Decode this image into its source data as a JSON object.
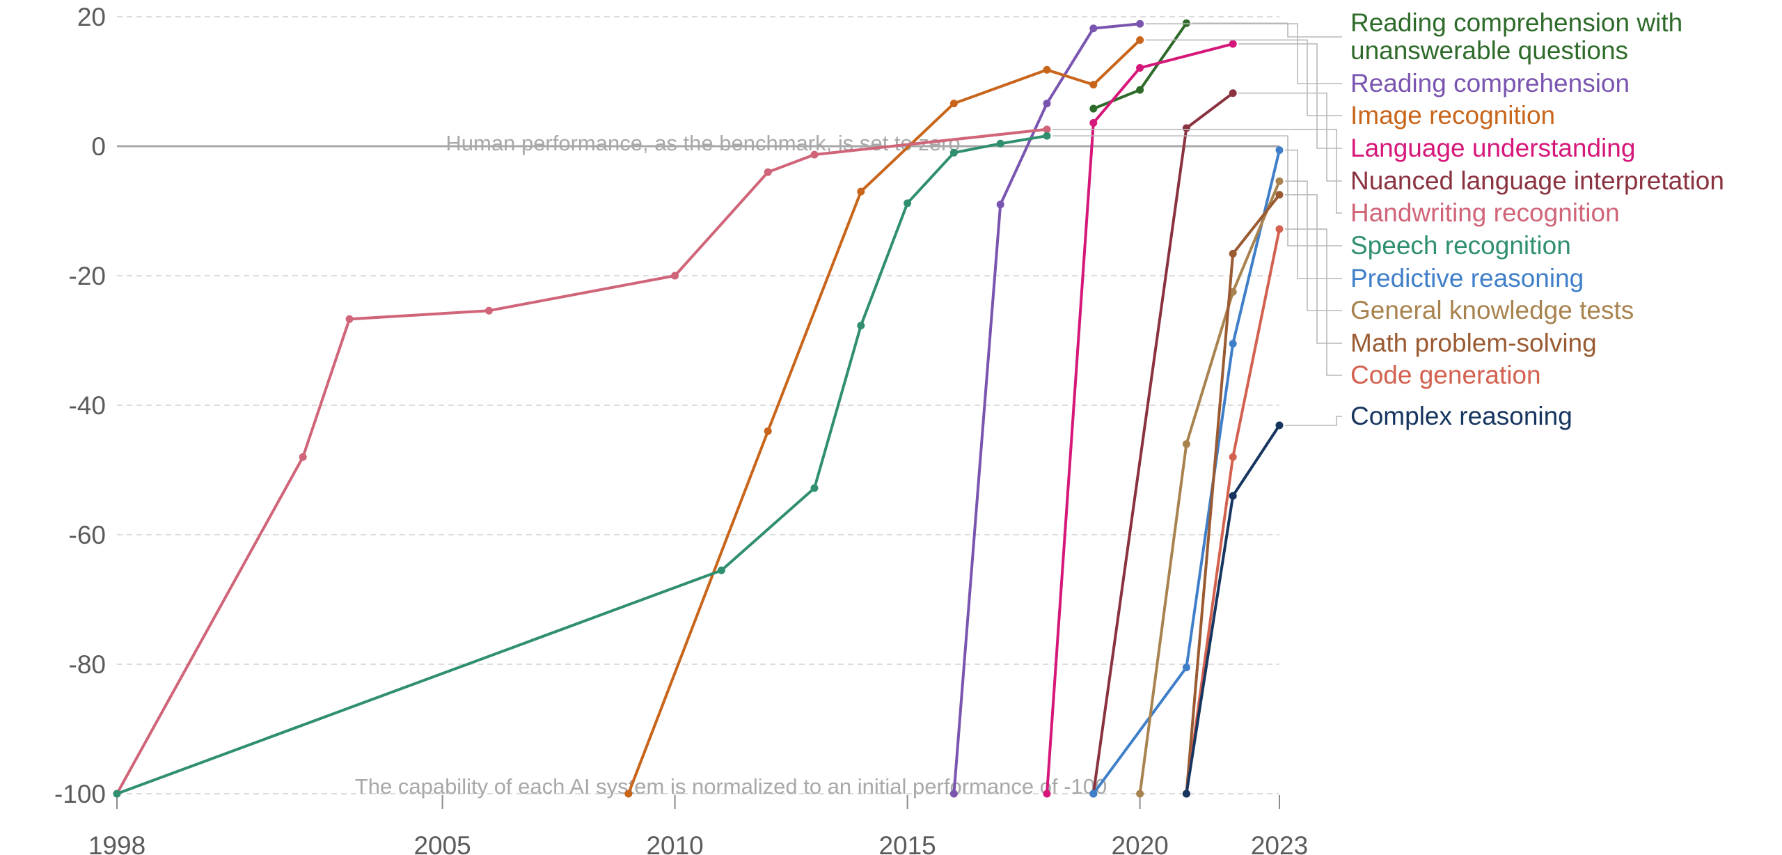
{
  "chart_data": {
    "type": "line",
    "x_ticks": [
      1998,
      2005,
      2010,
      2015,
      2020,
      2023
    ],
    "y_ticks": [
      20,
      0,
      -20,
      -40,
      -60,
      -80,
      -100
    ],
    "xlim": [
      1998,
      2023
    ],
    "ylim": [
      -100,
      20
    ],
    "grid": true,
    "legend": "right, end-of-line labels",
    "annotations": {
      "zero_line": "Human performance, as the benchmark, is set to zero",
      "baseline": "The capability of each AI system is normalized to an initial performance of -100"
    },
    "series": [
      {
        "name": "Reading comprehension with unanswerable questions",
        "color": "#2e6b2a",
        "points": [
          [
            2019,
            5.8
          ],
          [
            2020,
            8.7
          ],
          [
            2021,
            19
          ]
        ]
      },
      {
        "name": "Reading comprehension",
        "color": "#7a55b0",
        "points": [
          [
            2016,
            -100
          ],
          [
            2017,
            -9
          ],
          [
            2018,
            6.6
          ],
          [
            2019,
            18.2
          ],
          [
            2020,
            18.9
          ]
        ]
      },
      {
        "name": "Image recognition",
        "color": "#c8651b",
        "points": [
          [
            2009,
            -100
          ],
          [
            2012,
            -44
          ],
          [
            2014,
            -7
          ],
          [
            2016,
            6.6
          ],
          [
            2018,
            11.8
          ],
          [
            2019,
            9.5
          ],
          [
            2020,
            16.4
          ]
        ]
      },
      {
        "name": "Language understanding",
        "color": "#d6177a",
        "points": [
          [
            2018,
            -100
          ],
          [
            2019,
            3.6
          ],
          [
            2020,
            12.1
          ],
          [
            2022,
            15.8
          ]
        ]
      },
      {
        "name": "Nuanced language interpretation",
        "color": "#8a3240",
        "points": [
          [
            2019,
            -100
          ],
          [
            2021,
            2.8
          ],
          [
            2022,
            8.2
          ]
        ]
      },
      {
        "name": "Handwriting recognition",
        "color": "#d06478",
        "points": [
          [
            1998,
            -100
          ],
          [
            2002,
            -48
          ],
          [
            2003,
            -26.7
          ],
          [
            2006,
            -25.4
          ],
          [
            2010,
            -20
          ],
          [
            2012,
            -4
          ],
          [
            2013,
            -1.3
          ],
          [
            2018,
            2.6
          ]
        ]
      },
      {
        "name": "Speech recognition",
        "color": "#2f8f6e",
        "points": [
          [
            1998,
            -100
          ],
          [
            2011,
            -65.5
          ],
          [
            2013,
            -52.8
          ],
          [
            2014,
            -27.7
          ],
          [
            2015,
            -8.8
          ],
          [
            2016,
            -1
          ],
          [
            2017,
            0.4
          ],
          [
            2018,
            1.6
          ]
        ]
      },
      {
        "name": "Predictive reasoning",
        "color": "#3f7fc9",
        "points": [
          [
            2019,
            -100
          ],
          [
            2021,
            -80.5
          ],
          [
            2022,
            -30.5
          ],
          [
            2023,
            -0.6
          ]
        ]
      },
      {
        "name": "General knowledge tests",
        "color": "#a8834f",
        "points": [
          [
            2020,
            -100
          ],
          [
            2021,
            -46
          ],
          [
            2022,
            -22.5
          ],
          [
            2023,
            -5.4
          ]
        ]
      },
      {
        "name": "Math problem-solving",
        "color": "#9a5a32",
        "points": [
          [
            2021,
            -100
          ],
          [
            2022,
            -16.6
          ],
          [
            2023,
            -7.5
          ]
        ]
      },
      {
        "name": "Code generation",
        "color": "#d3614f",
        "points": [
          [
            2021,
            -100
          ],
          [
            2022,
            -48
          ],
          [
            2023,
            -12.8
          ]
        ]
      },
      {
        "name": "Complex reasoning",
        "color": "#16355f",
        "points": [
          [
            2021,
            -100
          ],
          [
            2022,
            -54
          ],
          [
            2023,
            -43.1
          ]
        ]
      }
    ]
  }
}
